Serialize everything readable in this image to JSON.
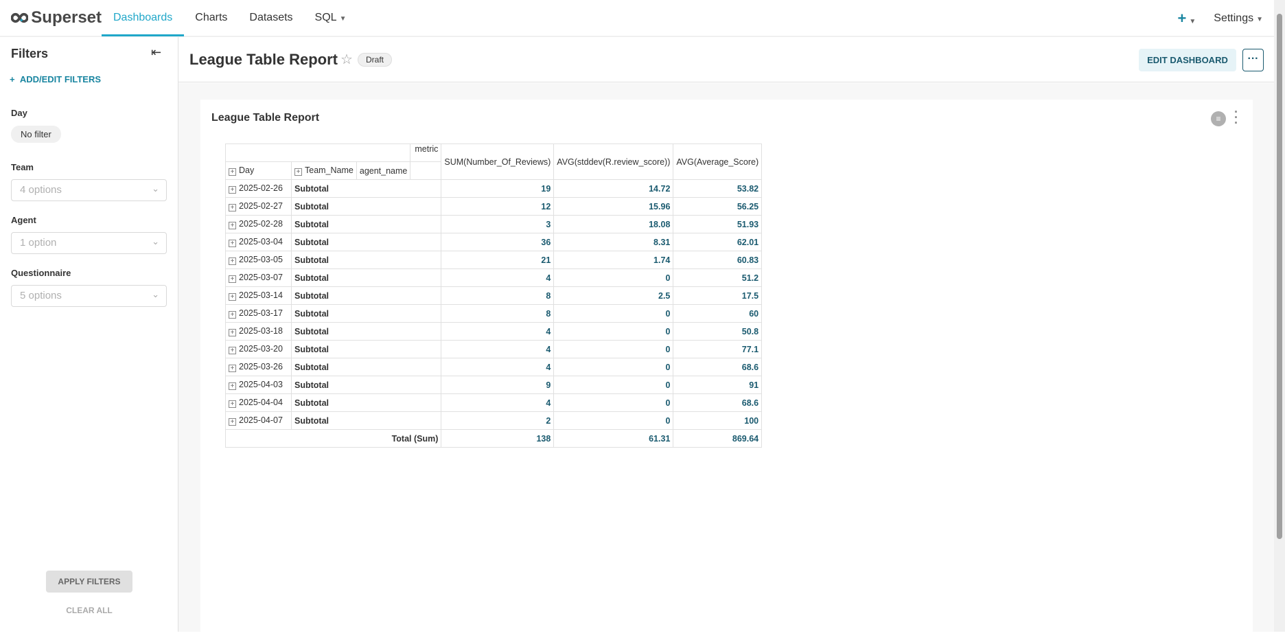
{
  "nav": {
    "brand": "Superset",
    "items": [
      "Dashboards",
      "Charts",
      "Datasets",
      "SQL"
    ],
    "active": "Dashboards",
    "settings": "Settings"
  },
  "sidebar": {
    "title": "Filters",
    "add": "ADD/EDIT FILTERS",
    "filters": [
      {
        "label": "Day",
        "value": "No filter"
      },
      {
        "label": "Team",
        "placeholder": "4 options"
      },
      {
        "label": "Agent",
        "placeholder": "1 option"
      },
      {
        "label": "Questionnaire",
        "placeholder": "5 options"
      }
    ],
    "apply": "APPLY FILTERS",
    "clear": "CLEAR ALL"
  },
  "header": {
    "title": "League Table Report",
    "badge": "Draft",
    "edit": "EDIT DASHBOARD",
    "more": "···"
  },
  "chart": {
    "title": "League Table Report",
    "headers": {
      "metric": "metric",
      "day": "Day",
      "team": "Team_Name",
      "agent": "agent_name",
      "cols": [
        "SUM(Number_Of_Reviews)",
        "AVG(stddev(R.review_score))",
        "AVG(Average_Score)"
      ]
    },
    "rows": [
      {
        "day": "2025-02-26",
        "label": "Subtotal",
        "v": [
          "19",
          "14.72",
          "53.82"
        ]
      },
      {
        "day": "2025-02-27",
        "label": "Subtotal",
        "v": [
          "12",
          "15.96",
          "56.25"
        ]
      },
      {
        "day": "2025-02-28",
        "label": "Subtotal",
        "v": [
          "3",
          "18.08",
          "51.93"
        ]
      },
      {
        "day": "2025-03-04",
        "label": "Subtotal",
        "v": [
          "36",
          "8.31",
          "62.01"
        ]
      },
      {
        "day": "2025-03-05",
        "label": "Subtotal",
        "v": [
          "21",
          "1.74",
          "60.83"
        ]
      },
      {
        "day": "2025-03-07",
        "label": "Subtotal",
        "v": [
          "4",
          "0",
          "51.2"
        ]
      },
      {
        "day": "2025-03-14",
        "label": "Subtotal",
        "v": [
          "8",
          "2.5",
          "17.5"
        ]
      },
      {
        "day": "2025-03-17",
        "label": "Subtotal",
        "v": [
          "8",
          "0",
          "60"
        ]
      },
      {
        "day": "2025-03-18",
        "label": "Subtotal",
        "v": [
          "4",
          "0",
          "50.8"
        ]
      },
      {
        "day": "2025-03-20",
        "label": "Subtotal",
        "v": [
          "4",
          "0",
          "77.1"
        ]
      },
      {
        "day": "2025-03-26",
        "label": "Subtotal",
        "v": [
          "4",
          "0",
          "68.6"
        ]
      },
      {
        "day": "2025-04-03",
        "label": "Subtotal",
        "v": [
          "9",
          "0",
          "91"
        ]
      },
      {
        "day": "2025-04-04",
        "label": "Subtotal",
        "v": [
          "4",
          "0",
          "68.6"
        ]
      },
      {
        "day": "2025-04-07",
        "label": "Subtotal",
        "v": [
          "2",
          "0",
          "100"
        ]
      }
    ],
    "total": {
      "label": "Total (Sum)",
      "v": [
        "138",
        "61.31",
        "869.64"
      ]
    }
  },
  "colors": {
    "accent": "#20a7c9",
    "primary_dark": "#1a5a6f"
  }
}
